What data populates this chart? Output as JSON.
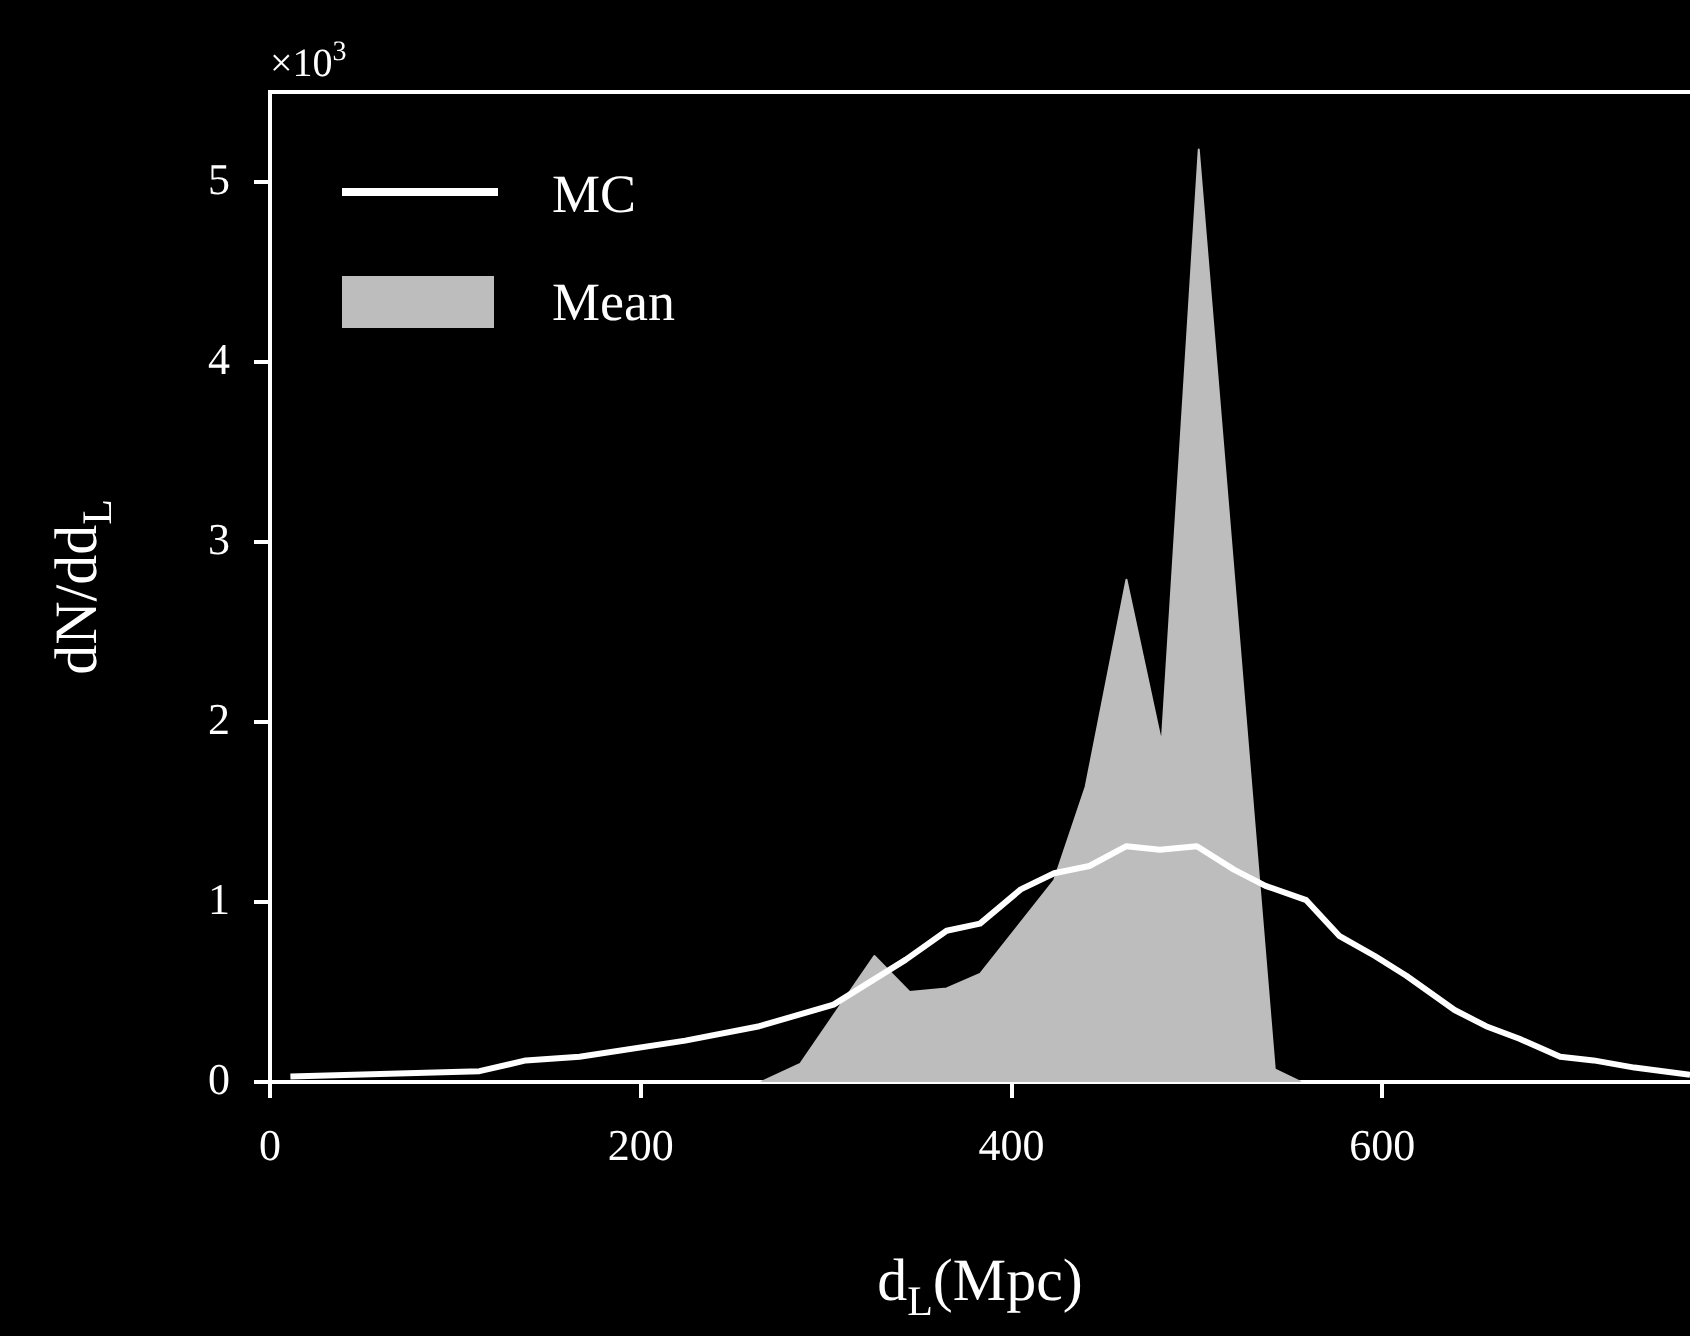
{
  "chart_data": {
    "type": "line",
    "xlabel": "d$_{L}$(Mpc)",
    "ylabel": "dN/dd$_{L}$",
    "annotations": [
      "×10$^{3}$"
    ],
    "xlim": [
      0,
      766
    ],
    "xticks": [
      0,
      200,
      400,
      600
    ],
    "ylim": [
      0,
      5.5
    ],
    "yticks": [
      0,
      1,
      2,
      3,
      4,
      5
    ],
    "legend": "top left",
    "series": [
      {
        "name": "Mean",
        "type": "area",
        "color": "#bdbdbd",
        "x": [
          265,
          286,
          326,
          345,
          365,
          383,
          423,
          440,
          462,
          481,
          501,
          542,
          556
        ],
        "values": [
          0,
          0.1,
          0.7,
          0.5,
          0.52,
          0.6,
          1.12,
          1.64,
          2.79,
          1.88,
          5.18,
          0.07,
          0
        ]
      },
      {
        "name": "MC",
        "type": "line",
        "color": "#ffffff",
        "x": [
          11,
          113,
          138,
          167,
          224,
          264,
          304,
          343,
          365,
          383,
          405,
          423,
          442,
          462,
          480,
          500,
          520,
          537,
          559,
          577,
          596,
          613,
          639,
          656,
          674,
          696,
          714,
          736,
          766
        ],
        "values": [
          0.03,
          0.06,
          0.12,
          0.14,
          0.23,
          0.31,
          0.43,
          0.68,
          0.84,
          0.88,
          1.07,
          1.16,
          1.2,
          1.31,
          1.29,
          1.31,
          1.18,
          1.09,
          1.01,
          0.81,
          0.7,
          0.59,
          0.4,
          0.31,
          0.24,
          0.14,
          0.12,
          0.08,
          0.04
        ]
      }
    ]
  }
}
